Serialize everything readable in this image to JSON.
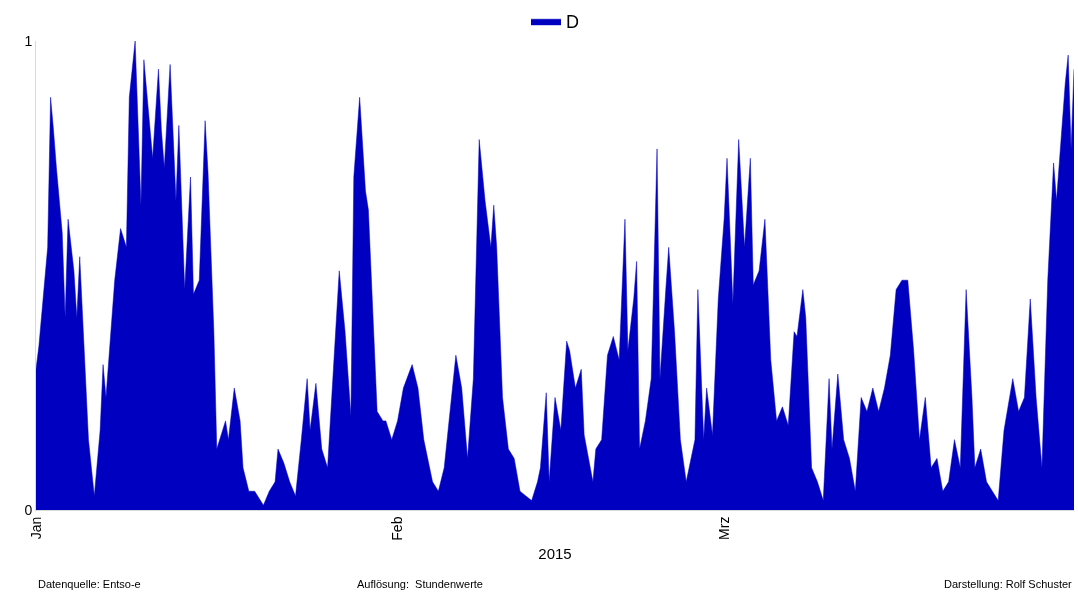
{
  "chart_data": {
    "type": "area",
    "x": [
      "2015-01-01T00:00",
      "2015-01-01T06:00",
      "2015-01-02T00:00",
      "2015-01-02T06:00",
      "2015-01-02T12:00",
      "2015-01-02T18:00",
      "2015-01-03T06:00",
      "2015-01-03T12:00",
      "2015-01-03T18:00",
      "2015-01-04T06:00",
      "2015-01-04T12:00",
      "2015-01-04T18:00",
      "2015-01-05T12:00",
      "2015-01-06T00:00",
      "2015-01-06T12:00",
      "2015-01-06T18:00",
      "2015-01-07T00:00",
      "2015-01-07T18:00",
      "2015-01-08T06:00",
      "2015-01-08T18:00",
      "2015-01-09T00:00",
      "2015-01-09T12:00",
      "2015-01-10T00:00",
      "2015-01-10T06:00",
      "2015-01-11T00:00",
      "2015-01-11T12:00",
      "2015-01-11T18:00",
      "2015-01-12T00:00",
      "2015-01-12T12:00",
      "2015-01-13T00:00",
      "2015-01-13T06:00",
      "2015-01-13T18:00",
      "2015-01-14T06:00",
      "2015-01-14T12:00",
      "2015-01-15T00:00",
      "2015-01-15T12:00",
      "2015-01-15T18:00",
      "2015-01-16T06:00",
      "2015-01-16T12:00",
      "2015-01-17T06:00",
      "2015-01-17T12:00",
      "2015-01-18T00:00",
      "2015-01-18T12:00",
      "2015-01-18T18:00",
      "2015-01-19T06:00",
      "2015-01-19T18:00",
      "2015-01-20T12:00",
      "2015-01-21T00:00",
      "2015-01-21T12:00",
      "2015-01-21T18:00",
      "2015-01-22T06:00",
      "2015-01-22T18:00",
      "2015-01-23T06:00",
      "2015-01-23T18:00",
      "2015-01-24T06:00",
      "2015-01-24T12:00",
      "2015-01-25T00:00",
      "2015-01-25T12:00",
      "2015-01-26T00:00",
      "2015-01-26T12:00",
      "2015-01-27T00:00",
      "2015-01-27T12:00",
      "2015-01-28T00:00",
      "2015-01-28T06:00",
      "2015-01-28T18:00",
      "2015-01-29T06:00",
      "2015-01-29T12:00",
      "2015-01-30T06:00",
      "2015-01-30T18:00",
      "2015-01-31T00:00",
      "2015-01-31T12:00",
      "2015-02-01T00:00",
      "2015-02-01T12:00",
      "2015-02-02T06:00",
      "2015-02-02T18:00",
      "2015-02-03T06:00",
      "2015-02-04T00:00",
      "2015-02-04T12:00",
      "2015-02-05T00:00",
      "2015-02-05T12:00",
      "2015-02-06T00:00",
      "2015-02-06T12:00",
      "2015-02-07T00:00",
      "2015-02-07T12:00",
      "2015-02-08T00:00",
      "2015-02-08T12:00",
      "2015-02-09T00:00",
      "2015-02-09T06:00",
      "2015-02-09T12:00",
      "2015-02-10T00:00",
      "2015-02-10T12:00",
      "2015-02-11T00:00",
      "2015-02-11T12:00",
      "2015-02-12T00:00",
      "2015-02-12T12:00",
      "2015-02-13T00:00",
      "2015-02-13T06:00",
      "2015-02-13T18:00",
      "2015-02-14T00:00",
      "2015-02-14T12:00",
      "2015-02-15T00:00",
      "2015-02-15T12:00",
      "2015-02-15T18:00",
      "2015-02-16T06:00",
      "2015-02-16T18:00",
      "2015-02-17T00:00",
      "2015-02-17T18:00",
      "2015-02-18T00:00",
      "2015-02-18T12:00",
      "2015-02-19T00:00",
      "2015-02-19T12:00",
      "2015-02-20T00:00",
      "2015-02-20T12:00",
      "2015-02-20T18:00",
      "2015-02-21T06:00",
      "2015-02-21T12:00",
      "2015-02-21T18:00",
      "2015-02-22T06:00",
      "2015-02-22T18:00",
      "2015-02-23T06:00",
      "2015-02-23T12:00",
      "2015-02-24T00:00",
      "2015-02-24T06:00",
      "2015-02-24T18:00",
      "2015-02-25T06:00",
      "2015-02-25T18:00",
      "2015-02-26T00:00",
      "2015-02-26T12:00",
      "2015-02-26T18:00",
      "2015-02-27T06:00",
      "2015-02-27T12:00",
      "2015-02-28T00:00",
      "2015-02-28T12:00",
      "2015-03-01T00:00",
      "2015-03-01T06:00",
      "2015-03-01T18:00",
      "2015-03-02T06:00",
      "2015-03-02T18:00",
      "2015-03-03T06:00",
      "2015-03-03T12:00",
      "2015-03-04T00:00",
      "2015-03-04T12:00",
      "2015-03-05T00:00",
      "2015-03-05T12:00",
      "2015-03-06T00:00",
      "2015-03-06T12:00",
      "2015-03-07T00:00",
      "2015-03-07T06:00",
      "2015-03-07T18:00",
      "2015-03-08T00:00",
      "2015-03-08T12:00",
      "2015-03-09T00:00",
      "2015-03-09T12:00",
      "2015-03-10T00:00",
      "2015-03-10T06:00",
      "2015-03-10T18:00",
      "2015-03-11T06:00",
      "2015-03-11T18:00",
      "2015-03-12T06:00",
      "2015-03-12T18:00",
      "2015-03-13T06:00",
      "2015-03-13T18:00",
      "2015-03-14T06:00",
      "2015-03-14T18:00",
      "2015-03-15T06:00",
      "2015-03-15T18:00",
      "2015-03-16T06:00",
      "2015-03-16T18:00",
      "2015-03-17T06:00",
      "2015-03-17T18:00",
      "2015-03-18T06:00",
      "2015-03-18T18:00",
      "2015-03-19T06:00",
      "2015-03-19T18:00",
      "2015-03-20T06:00",
      "2015-03-20T18:00",
      "2015-03-21T06:00",
      "2015-03-21T18:00",
      "2015-03-22T06:00",
      "2015-03-22T12:00",
      "2015-03-23T00:00",
      "2015-03-23T12:00",
      "2015-03-24T00:00",
      "2015-03-24T12:00",
      "2015-03-25T00:00",
      "2015-03-25T18:00",
      "2015-03-26T06:00",
      "2015-03-26T18:00",
      "2015-03-27T06:00",
      "2015-03-27T18:00",
      "2015-03-28T06:00",
      "2015-03-28T18:00",
      "2015-03-29T06:00",
      "2015-03-29T12:00",
      "2015-03-30T06:00",
      "2015-03-30T12:00",
      "2015-03-30T18:00",
      "2015-03-31T00:00"
    ],
    "series": [
      {
        "name": "D",
        "color": "#0000c0",
        "values": [
          0.3,
          0.35,
          0.56,
          0.88,
          0.81,
          0.73,
          0.59,
          0.41,
          0.62,
          0.51,
          0.41,
          0.54,
          0.15,
          0.03,
          0.17,
          0.31,
          0.24,
          0.49,
          0.6,
          0.56,
          0.88,
          1.0,
          0.65,
          0.96,
          0.75,
          0.94,
          0.81,
          0.73,
          0.95,
          0.66,
          0.82,
          0.47,
          0.71,
          0.46,
          0.49,
          0.83,
          0.72,
          0.38,
          0.13,
          0.19,
          0.15,
          0.26,
          0.19,
          0.09,
          0.04,
          0.04,
          0.01,
          0.04,
          0.06,
          0.13,
          0.1,
          0.06,
          0.03,
          0.15,
          0.28,
          0.17,
          0.27,
          0.13,
          0.09,
          0.3,
          0.51,
          0.38,
          0.2,
          0.71,
          0.88,
          0.68,
          0.64,
          0.21,
          0.19,
          0.19,
          0.15,
          0.19,
          0.26,
          0.31,
          0.26,
          0.15,
          0.06,
          0.04,
          0.09,
          0.21,
          0.33,
          0.26,
          0.11,
          0.28,
          0.79,
          0.66,
          0.56,
          0.65,
          0.56,
          0.24,
          0.13,
          0.11,
          0.04,
          0.03,
          0.02,
          0.06,
          0.09,
          0.25,
          0.06,
          0.24,
          0.17,
          0.36,
          0.34,
          0.26,
          0.3,
          0.16,
          0.06,
          0.13,
          0.15,
          0.33,
          0.37,
          0.32,
          0.62,
          0.34,
          0.45,
          0.53,
          0.13,
          0.19,
          0.28,
          0.77,
          0.28,
          0.47,
          0.56,
          0.38,
          0.15,
          0.06,
          0.09,
          0.15,
          0.47,
          0.15,
          0.26,
          0.16,
          0.45,
          0.62,
          0.75,
          0.44,
          0.79,
          0.56,
          0.75,
          0.48,
          0.51,
          0.62,
          0.32,
          0.19,
          0.22,
          0.18,
          0.38,
          0.37,
          0.47,
          0.41,
          0.09,
          0.06,
          0.02,
          0.28,
          0.13,
          0.29,
          0.15,
          0.11,
          0.04,
          0.24,
          0.21,
          0.26,
          0.21,
          0.26,
          0.33,
          0.47,
          0.49,
          0.49,
          0.34,
          0.15,
          0.24,
          0.09,
          0.11,
          0.04,
          0.06,
          0.15,
          0.09,
          0.47,
          0.24,
          0.09,
          0.13,
          0.06,
          0.04,
          0.02,
          0.17,
          0.28,
          0.21,
          0.24,
          0.45,
          0.24,
          0.09,
          0.49,
          0.74,
          0.66,
          0.91,
          0.97,
          0.77,
          0.94
        ]
      }
    ],
    "xlim": [
      "2015-01-01",
      "2015-03-31"
    ],
    "xticks": [
      {
        "value": "2015-01-01",
        "label": "Jan"
      },
      {
        "value": "2015-02-01",
        "label": "Feb"
      },
      {
        "value": "2015-03-01",
        "label": "Mrz"
      }
    ],
    "ylim": [
      0,
      1
    ],
    "yticks": [
      0,
      1
    ],
    "xlabel": "2015",
    "legend": "top",
    "annotations": [
      "Datenquelle: Entso-e",
      "Auflösung:  Stundenwerte",
      "Darstellung: Rolf Schuster"
    ]
  }
}
